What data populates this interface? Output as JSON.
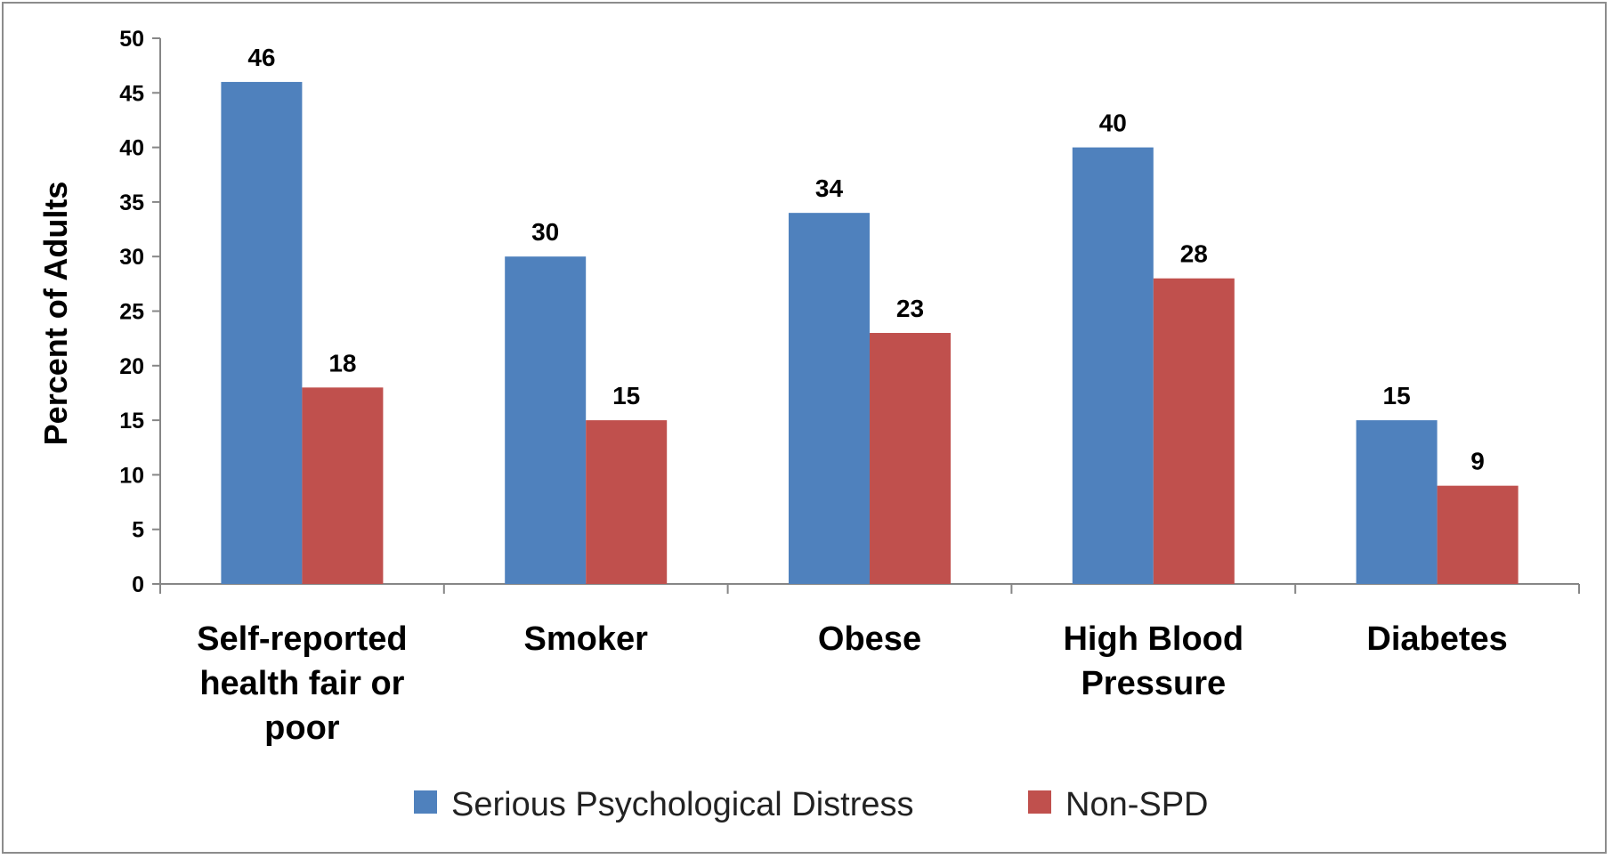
{
  "chart_data": {
    "type": "bar",
    "title": "",
    "xlabel": "",
    "ylabel": "Percent of Adults",
    "ylim": [
      0,
      50
    ],
    "yticks": [
      0,
      5,
      10,
      15,
      20,
      25,
      30,
      35,
      40,
      45,
      50
    ],
    "grid": false,
    "legend_position": "bottom",
    "categories": [
      [
        "Self-reported",
        "health fair or",
        "poor"
      ],
      [
        "Smoker"
      ],
      [
        "Obese"
      ],
      [
        "High Blood",
        "Pressure"
      ],
      [
        "Diabetes"
      ]
    ],
    "series": [
      {
        "name": "Serious Psychological Distress",
        "color": "#4f81bd",
        "values": [
          46,
          30,
          34,
          40,
          15
        ]
      },
      {
        "name": "Non-SPD",
        "color": "#c0504d",
        "values": [
          18,
          15,
          23,
          28,
          9
        ]
      }
    ]
  }
}
